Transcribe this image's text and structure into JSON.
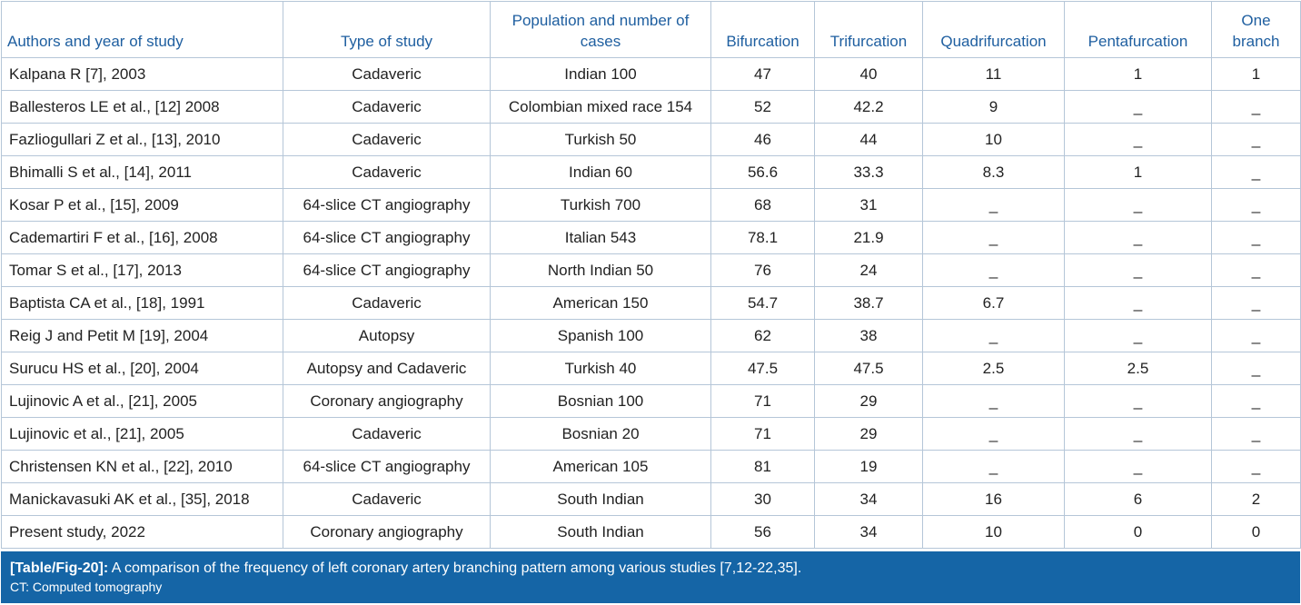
{
  "table": {
    "headers": [
      "Authors and year of study",
      "Type of study",
      "Population and number of cases",
      "Bifurcation",
      "Trifurcation",
      "Quadrifurcation",
      "Pentafurcation",
      "One branch"
    ],
    "rows": [
      [
        "Kalpana R [7], 2003",
        "Cadaveric",
        "Indian 100",
        "47",
        "40",
        "11",
        "1",
        "1"
      ],
      [
        "Ballesteros LE et al., [12] 2008",
        "Cadaveric",
        "Colombian mixed race 154",
        "52",
        "42.2",
        "9",
        "_",
        "_"
      ],
      [
        "Fazliogullari Z et al., [13], 2010",
        "Cadaveric",
        "Turkish 50",
        "46",
        "44",
        "10",
        "_",
        "_"
      ],
      [
        "Bhimalli S et al., [14], 2011",
        "Cadaveric",
        "Indian 60",
        "56.6",
        "33.3",
        "8.3",
        "1",
        "_"
      ],
      [
        "Kosar P et al., [15], 2009",
        "64-slice CT angiography",
        "Turkish 700",
        "68",
        "31",
        "_",
        "_",
        "_"
      ],
      [
        "Cademartiri F et al., [16], 2008",
        "64-slice CT angiography",
        "Italian 543",
        "78.1",
        "21.9",
        "_",
        "_",
        "_"
      ],
      [
        "Tomar S et al., [17], 2013",
        "64-slice CT angiography",
        "North Indian 50",
        "76",
        "24",
        "_",
        "_",
        "_"
      ],
      [
        "Baptista CA et al., [18], 1991",
        "Cadaveric",
        "American 150",
        "54.7",
        "38.7",
        "6.7",
        "_",
        "_"
      ],
      [
        "Reig J and Petit M [19], 2004",
        "Autopsy",
        "Spanish 100",
        "62",
        "38",
        "_",
        "_",
        "_"
      ],
      [
        "Surucu HS et al., [20], 2004",
        "Autopsy and Cadaveric",
        "Turkish 40",
        "47.5",
        "47.5",
        "2.5",
        "2.5",
        "_"
      ],
      [
        "Lujinovic A et al., [21], 2005",
        "Coronary angiography",
        "Bosnian 100",
        "71",
        "29",
        "_",
        "_",
        "_"
      ],
      [
        "Lujinovic et al., [21], 2005",
        "Cadaveric",
        "Bosnian 20",
        "71",
        "29",
        "_",
        "_",
        "_"
      ],
      [
        "Christensen KN et al., [22], 2010",
        "64-slice CT angiography",
        "American 105",
        "81",
        "19",
        "_",
        "_",
        "_"
      ],
      [
        "Manickavasuki AK et al., [35], 2018",
        "Cadaveric",
        "South Indian",
        "30",
        "34",
        "16",
        "6",
        "2"
      ],
      [
        "Present study, 2022",
        "Coronary angiography",
        "South Indian",
        "56",
        "34",
        "10",
        "0",
        "0"
      ]
    ]
  },
  "caption": {
    "label": "[Table/Fig-20]:",
    "text": " A comparison of the frequency of left coronary artery branching pattern among various studies [7,12-22,35].",
    "note": "CT: Computed tomography"
  },
  "colors": {
    "header_text": "#1f5fa0",
    "border": "#b5c6d8",
    "caption_bg": "#1565a6"
  }
}
